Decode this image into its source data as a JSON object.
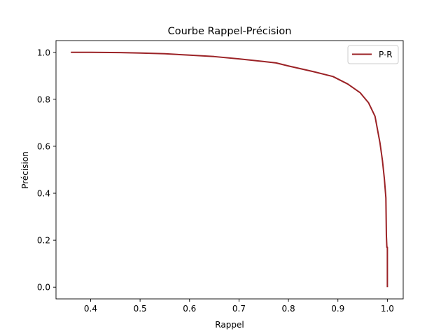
{
  "chart_data": {
    "type": "line",
    "title": "Courbe Rappel-Précision",
    "xlabel": "Rappel",
    "ylabel": "Précision",
    "xlim": [
      0.33,
      1.032
    ],
    "ylim": [
      -0.05,
      1.05
    ],
    "xticks": [
      0.4,
      0.5,
      0.6,
      0.7,
      0.8,
      0.9,
      1.0
    ],
    "xtick_labels": [
      "0.4",
      "0.5",
      "0.6",
      "0.7",
      "0.8",
      "0.9",
      "1.0"
    ],
    "yticks": [
      0.0,
      0.2,
      0.4,
      0.6,
      0.8,
      1.0
    ],
    "ytick_labels": [
      "0.0",
      "0.2",
      "0.4",
      "0.6",
      "0.8",
      "1.0"
    ],
    "grid": false,
    "legend_position": "top-right",
    "series": [
      {
        "name": "P-R",
        "color": "#9b2226",
        "x": [
          0.36,
          0.4,
          0.46,
          0.5,
          0.55,
          0.6,
          0.65,
          0.7,
          0.75,
          0.775,
          0.8,
          0.85,
          0.89,
          0.92,
          0.945,
          0.962,
          0.975,
          0.985,
          0.99,
          0.994,
          0.997,
          0.998,
          0.999,
          1.0,
          1.0
        ],
        "y": [
          1.0,
          1.0,
          0.999,
          0.997,
          0.994,
          0.988,
          0.982,
          0.972,
          0.961,
          0.955,
          0.942,
          0.918,
          0.897,
          0.865,
          0.828,
          0.785,
          0.728,
          0.615,
          0.54,
          0.46,
          0.38,
          0.22,
          0.17,
          0.17,
          0.0
        ]
      }
    ]
  }
}
